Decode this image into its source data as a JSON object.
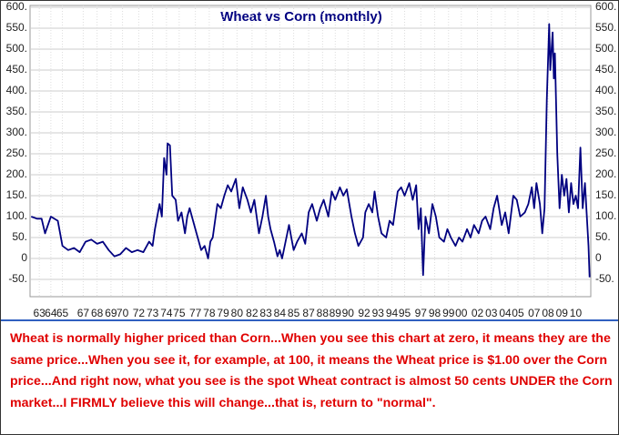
{
  "chart_data": {
    "type": "line",
    "title": "Wheat vs Corn (monthly)",
    "note": "Wheat is normally higher priced than Corn...When you see this chart at zero, it means they are the same price...When you see it, for example, at 100, it means the Wheat price is $1.00 over the Corn price...And right now, what you see is the spot Wheat contract is almost 50 cents UNDER the Corn market...I FIRMLY believe this will change...that is, return to \"normal\".",
    "x": [
      1962.3,
      1962.8,
      1963.2,
      1963.5,
      1964,
      1964.6,
      1965,
      1965.5,
      1966,
      1966.5,
      1967,
      1967.5,
      1968,
      1968.5,
      1969,
      1969.5,
      1970,
      1970.5,
      1971,
      1971.5,
      1972,
      1972.5,
      1972.8,
      1973,
      1973.4,
      1973.6,
      1973.8,
      1974,
      1974.1,
      1974.3,
      1974.5,
      1974.8,
      1975,
      1975.3,
      1975.6,
      1975.8,
      1976,
      1976.3,
      1976.6,
      1977,
      1977.3,
      1977.6,
      1977.8,
      1978,
      1978.4,
      1978.7,
      1979,
      1979.3,
      1979.6,
      1980,
      1980.3,
      1980.6,
      1981,
      1981.3,
      1981.6,
      1982,
      1982.3,
      1982.6,
      1982.8,
      1983,
      1983.3,
      1983.6,
      1983.8,
      1984,
      1984.3,
      1984.6,
      1984.8,
      1985,
      1985.3,
      1985.7,
      1986,
      1986.3,
      1986.6,
      1987,
      1987.3,
      1987.6,
      1988,
      1988.3,
      1988.6,
      1989,
      1989.3,
      1989.6,
      1990,
      1990.3,
      1990.6,
      1991,
      1991.2,
      1991.5,
      1991.8,
      1992,
      1992.3,
      1992.6,
      1993,
      1993.3,
      1993.6,
      1994,
      1994.3,
      1994.6,
      1995,
      1995.3,
      1995.6,
      1995.8,
      1996,
      1996.2,
      1996.4,
      1996.7,
      1997,
      1997.3,
      1997.6,
      1998,
      1998.3,
      1998.6,
      1999,
      1999.3,
      1999.6,
      2000,
      2000.3,
      2000.6,
      2001,
      2001.3,
      2001.6,
      2002,
      2002.3,
      2002.6,
      2003,
      2003.3,
      2003.6,
      2004,
      2004.3,
      2004.6,
      2005,
      2005.3,
      2005.6,
      2005.8,
      2006,
      2006.3,
      2006.5,
      2006.7,
      2006.9,
      2007.1,
      2007.2,
      2007.4,
      2007.5,
      2007.6,
      2007.8,
      2008,
      2008.2,
      2008.4,
      2008.6,
      2008.8,
      2009,
      2009.2,
      2009.4,
      2009.6,
      2009.8,
      2010,
      2010.2,
      2010.4,
      2010.5,
      2010.6
    ],
    "series": [
      {
        "name": "Wheat - Corn",
        "color": "#000080",
        "values": [
          100,
          95,
          95,
          60,
          100,
          90,
          30,
          20,
          25,
          15,
          40,
          45,
          35,
          40,
          20,
          5,
          10,
          25,
          15,
          20,
          15,
          40,
          30,
          70,
          130,
          100,
          240,
          200,
          275,
          270,
          150,
          140,
          90,
          110,
          60,
          100,
          120,
          90,
          60,
          20,
          30,
          0,
          40,
          50,
          130,
          120,
          150,
          175,
          160,
          190,
          120,
          170,
          140,
          110,
          140,
          60,
          100,
          150,
          100,
          70,
          40,
          5,
          20,
          0,
          40,
          80,
          50,
          20,
          40,
          60,
          35,
          110,
          130,
          90,
          120,
          140,
          100,
          160,
          140,
          170,
          150,
          165,
          100,
          60,
          30,
          50,
          110,
          130,
          110,
          160,
          100,
          60,
          50,
          90,
          80,
          160,
          170,
          150,
          180,
          140,
          175,
          70,
          120,
          -40,
          100,
          60,
          130,
          100,
          50,
          40,
          70,
          50,
          30,
          50,
          40,
          70,
          50,
          80,
          60,
          90,
          100,
          70,
          120,
          150,
          80,
          110,
          60,
          150,
          140,
          100,
          110,
          130,
          170,
          120,
          180,
          130,
          60,
          120,
          380,
          560,
          450,
          540,
          430,
          490,
          250,
          120,
          200,
          150,
          190,
          110,
          180,
          130,
          150,
          120,
          265,
          120,
          180,
          80,
          30,
          -45
        ]
      }
    ],
    "xlim": [
      1962.2,
      2010.7
    ],
    "xticks": [
      {
        "value": 1963,
        "label": "63"
      },
      {
        "value": 1964,
        "label": "64"
      },
      {
        "value": 1965,
        "label": "65"
      },
      {
        "value": 1966.8,
        "label": "67"
      },
      {
        "value": 1968,
        "label": "68"
      },
      {
        "value": 1969.2,
        "label": "69"
      },
      {
        "value": 1970.2,
        "label": "70"
      },
      {
        "value": 1971.6,
        "label": "72"
      },
      {
        "value": 1972.8,
        "label": "73"
      },
      {
        "value": 1974,
        "label": "74"
      },
      {
        "value": 1975.1,
        "label": "75"
      },
      {
        "value": 1976.5,
        "label": "77"
      },
      {
        "value": 1977.7,
        "label": "78"
      },
      {
        "value": 1978.9,
        "label": "79"
      },
      {
        "value": 1980.1,
        "label": "80"
      },
      {
        "value": 1981.4,
        "label": "82"
      },
      {
        "value": 1982.6,
        "label": "83"
      },
      {
        "value": 1983.8,
        "label": "84"
      },
      {
        "value": 1985,
        "label": "85"
      },
      {
        "value": 1986.3,
        "label": "87"
      },
      {
        "value": 1987.5,
        "label": "88"
      },
      {
        "value": 1988.6,
        "label": "89"
      },
      {
        "value": 1989.7,
        "label": "90"
      },
      {
        "value": 1991.1,
        "label": "92"
      },
      {
        "value": 1992.3,
        "label": "93"
      },
      {
        "value": 1993.5,
        "label": "94"
      },
      {
        "value": 1994.6,
        "label": "95"
      },
      {
        "value": 1996,
        "label": "97"
      },
      {
        "value": 1997.2,
        "label": "98"
      },
      {
        "value": 1998.4,
        "label": "99"
      },
      {
        "value": 1999.5,
        "label": "00"
      },
      {
        "value": 2000.9,
        "label": "02"
      },
      {
        "value": 2002.1,
        "label": "03"
      },
      {
        "value": 2003.3,
        "label": "04"
      },
      {
        "value": 2004.4,
        "label": "05"
      },
      {
        "value": 2005.8,
        "label": "07"
      },
      {
        "value": 2007,
        "label": "08"
      },
      {
        "value": 2008.2,
        "label": "09"
      },
      {
        "value": 2009.4,
        "label": "10"
      }
    ],
    "ylim": [
      -90,
      600
    ],
    "yticks": [
      {
        "value": -50,
        "label": "-50."
      },
      0,
      {
        "value": 50,
        "label": "50."
      },
      {
        "value": 100,
        "label": "100."
      },
      {
        "value": 150,
        "label": "150."
      },
      {
        "value": 200,
        "label": "200."
      },
      {
        "value": 250,
        "label": "250."
      },
      {
        "value": 300,
        "label": "300."
      },
      {
        "value": 350,
        "label": "350."
      },
      {
        "value": 400,
        "label": "400."
      },
      {
        "value": 450,
        "label": "450."
      },
      {
        "value": 500,
        "label": "500."
      },
      {
        "value": 550,
        "label": "550."
      },
      {
        "value": 600,
        "label": "600."
      }
    ],
    "grid": true
  }
}
